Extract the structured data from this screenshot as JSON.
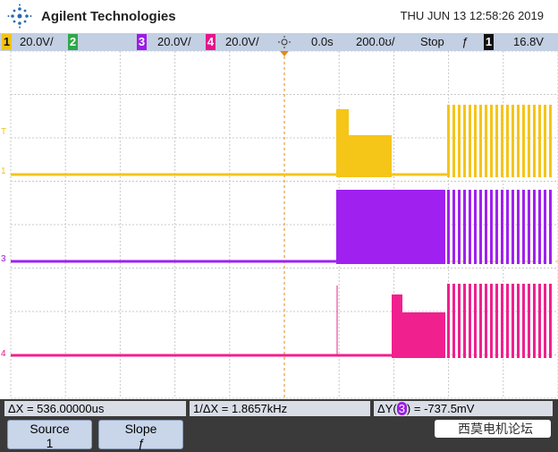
{
  "header": {
    "brand": "Agilent Technologies",
    "datetime": "THU JUN 13 12:58:26 2019"
  },
  "status_bar": {
    "ch1": {
      "number": "1",
      "scale": "20.0V/"
    },
    "ch2": {
      "number": "2"
    },
    "ch3": {
      "number": "3",
      "scale": "20.0V/"
    },
    "ch4": {
      "number": "4",
      "scale": "20.0V/"
    },
    "delay": "0.0s",
    "timebase": "200.0ʊ/",
    "run_state": "Stop",
    "trigger_slope": "ƒ",
    "trigger_source": "1",
    "trigger_level": "16.8V"
  },
  "markers": {
    "trigger": "T",
    "ch1": "1",
    "ch3": "3",
    "ch4": "4"
  },
  "measurements": {
    "delta_x": "ΔX = 536.00000us",
    "inv_delta_x": "1/ΔX = 1.8657kHz",
    "delta_y_prefix": "ΔY(",
    "delta_y_source": "3",
    "delta_y_value": ") = -737.5mV"
  },
  "softkeys": [
    {
      "label": "Source",
      "value": "1"
    },
    {
      "label": "Slope",
      "value": "ƒ"
    }
  ],
  "watermark": "西莫电机论坛"
}
